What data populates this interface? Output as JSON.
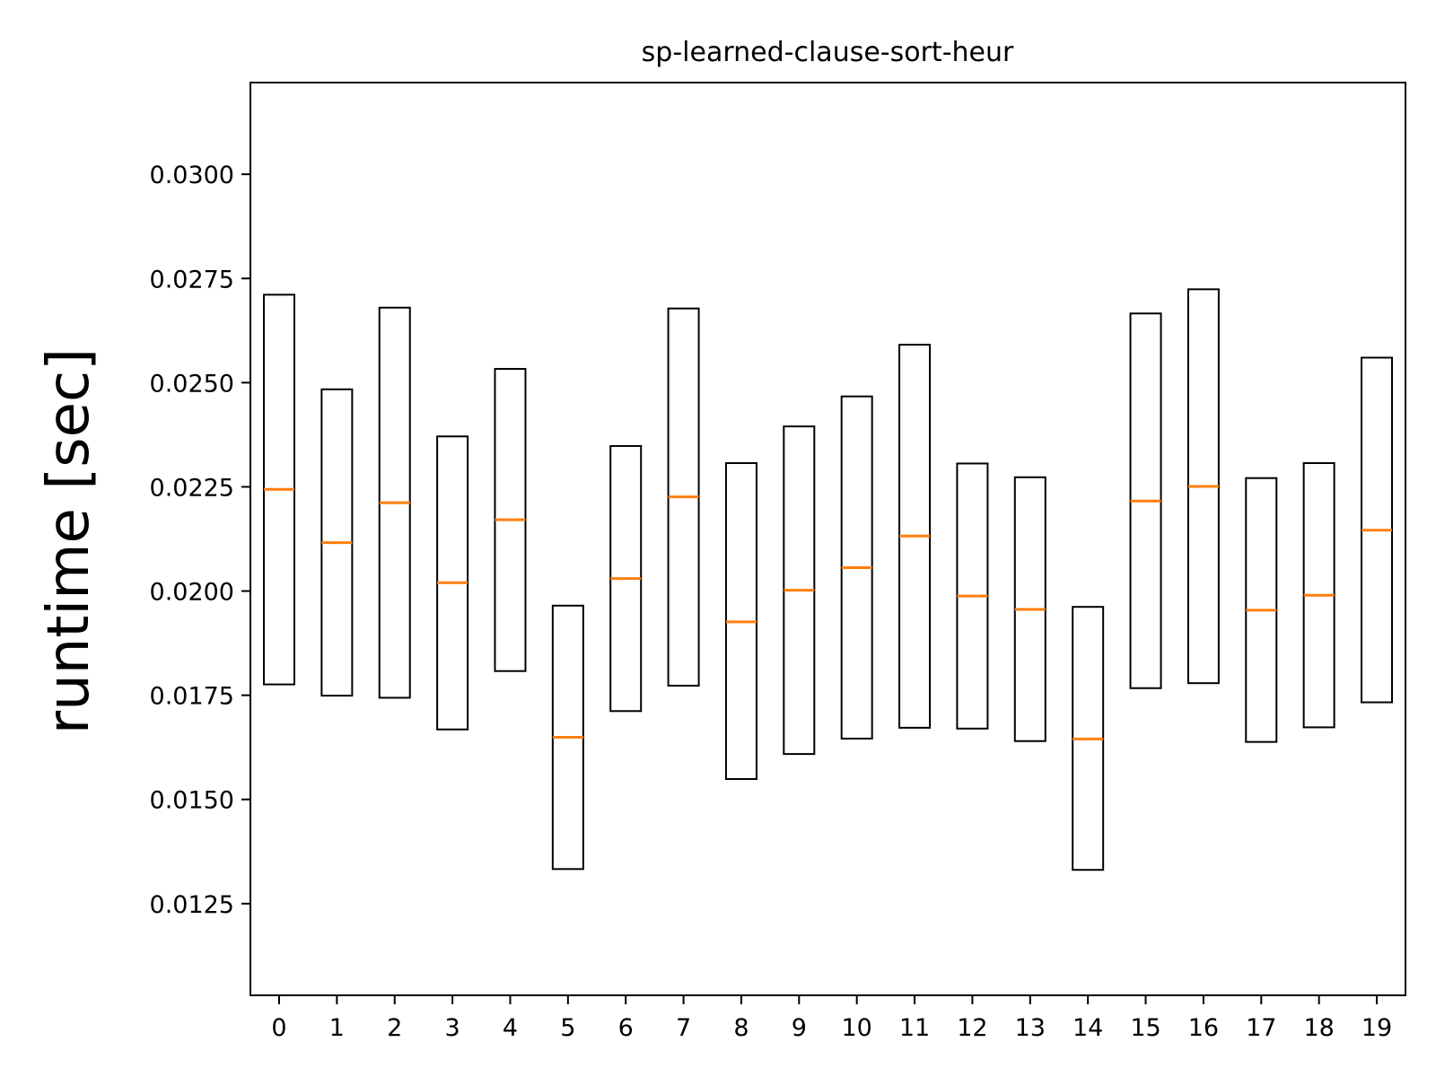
{
  "chart_data": {
    "type": "boxplot",
    "title": "sp-learned-clause-sort-heur",
    "xlabel": "",
    "ylabel": "runtime [sec]",
    "ylim": [
      0.0103,
      0.0322
    ],
    "yticks": [
      "0.0125",
      "0.0150",
      "0.0175",
      "0.0200",
      "0.0225",
      "0.0250",
      "0.0275",
      "0.0300"
    ],
    "categories": [
      "0",
      "1",
      "2",
      "3",
      "4",
      "5",
      "6",
      "7",
      "8",
      "9",
      "10",
      "11",
      "12",
      "13",
      "14",
      "15",
      "16",
      "17",
      "18",
      "19"
    ],
    "highlight_category": "5",
    "highlight_color": "#ff0000",
    "box_color": "#000000",
    "median_color": "#ff7f0e",
    "boxes": [
      {
        "low": 0.01776,
        "median": 0.02244,
        "high": 0.02711
      },
      {
        "low": 0.01749,
        "median": 0.02116,
        "high": 0.02484
      },
      {
        "low": 0.01744,
        "median": 0.02212,
        "high": 0.0268
      },
      {
        "low": 0.01668,
        "median": 0.0202,
        "high": 0.02371
      },
      {
        "low": 0.01808,
        "median": 0.02171,
        "high": 0.02533
      },
      {
        "low": 0.01333,
        "median": 0.01649,
        "high": 0.01965
      },
      {
        "low": 0.01712,
        "median": 0.0203,
        "high": 0.02348
      },
      {
        "low": 0.01773,
        "median": 0.02226,
        "high": 0.02678
      },
      {
        "low": 0.01549,
        "median": 0.01926,
        "high": 0.02307
      },
      {
        "low": 0.01609,
        "median": 0.02002,
        "high": 0.02395
      },
      {
        "low": 0.01646,
        "median": 0.02056,
        "high": 0.02467
      },
      {
        "low": 0.01672,
        "median": 0.02132,
        "high": 0.02591
      },
      {
        "low": 0.0167,
        "median": 0.01988,
        "high": 0.02306
      },
      {
        "low": 0.0164,
        "median": 0.01956,
        "high": 0.02273
      },
      {
        "low": 0.01331,
        "median": 0.01645,
        "high": 0.01962
      },
      {
        "low": 0.01767,
        "median": 0.02216,
        "high": 0.02666
      },
      {
        "low": 0.01779,
        "median": 0.02251,
        "high": 0.02724
      },
      {
        "low": 0.01638,
        "median": 0.01954,
        "high": 0.02271
      },
      {
        "low": 0.01673,
        "median": 0.0199,
        "high": 0.02307
      },
      {
        "low": 0.01733,
        "median": 0.02146,
        "high": 0.0256
      }
    ]
  }
}
